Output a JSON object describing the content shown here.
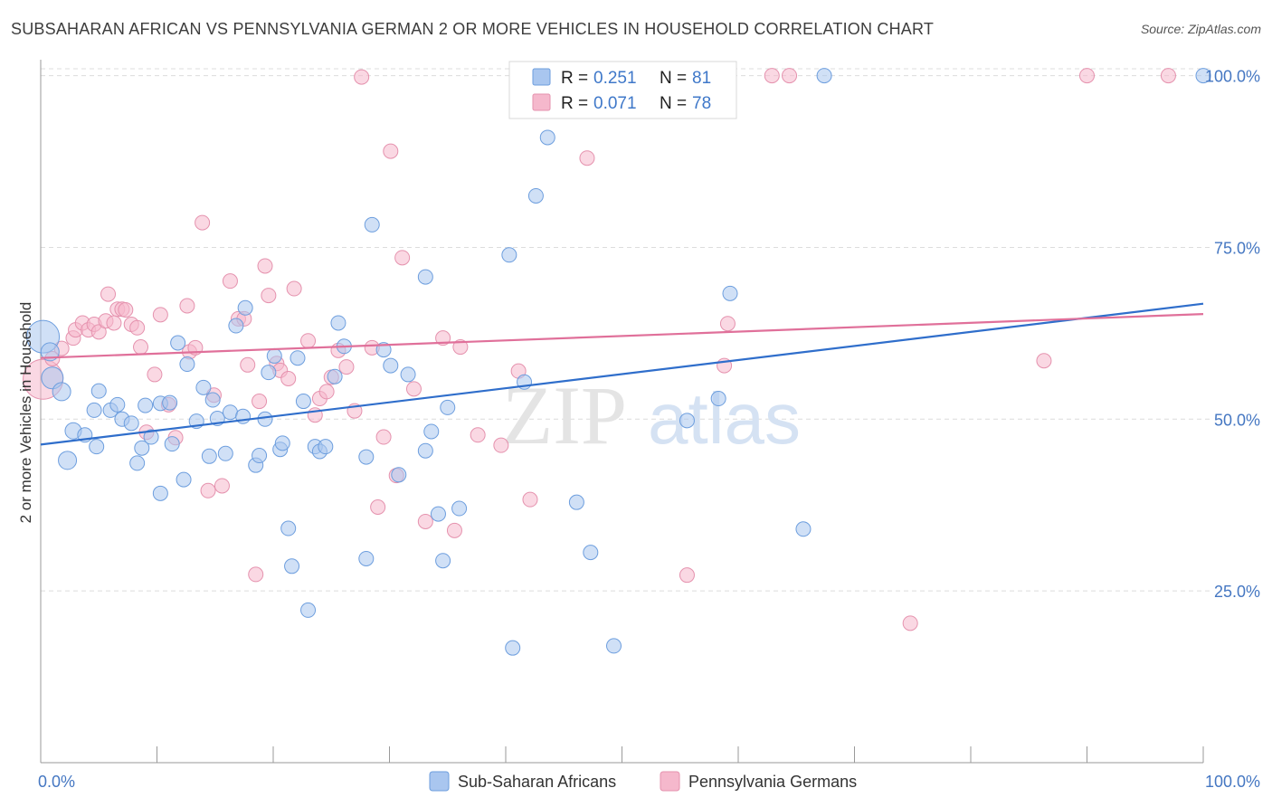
{
  "title": "SUBSAHARAN AFRICAN VS PENNSYLVANIA GERMAN 2 OR MORE VEHICLES IN HOUSEHOLD CORRELATION CHART",
  "source": "Source: ZipAtlas.com",
  "watermark": {
    "zip": "ZIP",
    "atlas": "atlas"
  },
  "colors": {
    "blue_fill": "#a9c6ef",
    "blue_stroke": "#6d9ede",
    "blue_line": "#2f6ecb",
    "pink_fill": "#f5b8cc",
    "pink_stroke": "#e592ae",
    "pink_line": "#e0709a",
    "value_text": "#3f78c9",
    "axis_text": "#4577c2",
    "grid": "#dcdcdc"
  },
  "legend_top": {
    "blue": {
      "r_label": "R =",
      "r_value": "0.251",
      "n_label": "N =",
      "n_value": "81"
    },
    "pink": {
      "r_label": "R =",
      "r_value": "0.071",
      "n_label": "N =",
      "n_value": "78"
    }
  },
  "chart_data": {
    "type": "scatter",
    "title": "SUBSAHARAN AFRICAN VS PENNSYLVANIA GERMAN 2 OR MORE VEHICLES IN HOUSEHOLD CORRELATION CHART",
    "xlabel": "",
    "ylabel": "2 or more Vehicles in Household",
    "xlim": [
      0,
      100
    ],
    "ylim": [
      0,
      101
    ],
    "x_tick_labels": [
      "0.0%",
      "100.0%"
    ],
    "y_ticks": [
      25,
      50,
      75,
      100
    ],
    "y_tick_labels": [
      "25.0%",
      "50.0%",
      "75.0%",
      "100.0%"
    ],
    "grid": true,
    "legend_position": "bottom-center",
    "series": [
      {
        "name": "Sub-Saharan Africans",
        "color": "#a9c6ef",
        "trend": {
          "x": [
            0,
            100
          ],
          "y": [
            46.3,
            66.8
          ]
        },
        "points": [
          [
            0.2,
            62.0,
            18
          ],
          [
            0.8,
            59.8,
            10
          ],
          [
            1.0,
            56.0,
            12
          ],
          [
            1.8,
            54.0,
            10
          ],
          [
            2.3,
            44.0,
            10
          ],
          [
            2.8,
            48.3,
            9
          ],
          [
            3.8,
            47.7,
            8
          ],
          [
            4.6,
            51.3,
            8
          ],
          [
            4.8,
            46.0,
            8
          ],
          [
            5.0,
            54.1,
            8
          ],
          [
            6.0,
            51.3,
            8
          ],
          [
            6.6,
            52.1,
            8
          ],
          [
            7.0,
            50.0,
            8
          ],
          [
            7.8,
            49.4,
            8
          ],
          [
            8.3,
            43.6,
            8
          ],
          [
            8.7,
            45.8,
            8
          ],
          [
            9.0,
            52.0,
            8
          ],
          [
            9.5,
            47.4,
            8
          ],
          [
            10.3,
            52.3,
            8
          ],
          [
            10.3,
            39.2,
            8
          ],
          [
            11.1,
            52.4,
            8
          ],
          [
            11.3,
            46.4,
            8
          ],
          [
            11.8,
            61.1,
            8
          ],
          [
            12.3,
            41.2,
            8
          ],
          [
            12.6,
            58.0,
            8
          ],
          [
            13.4,
            49.7,
            8
          ],
          [
            14.0,
            54.6,
            8
          ],
          [
            14.5,
            44.6,
            8
          ],
          [
            14.8,
            52.8,
            8
          ],
          [
            15.2,
            50.1,
            8
          ],
          [
            15.9,
            45.0,
            8
          ],
          [
            16.3,
            51.0,
            8
          ],
          [
            16.8,
            63.6,
            8
          ],
          [
            17.4,
            50.4,
            8
          ],
          [
            17.6,
            66.2,
            8
          ],
          [
            18.5,
            43.3,
            8
          ],
          [
            18.8,
            44.7,
            8
          ],
          [
            19.3,
            50.0,
            8
          ],
          [
            19.6,
            56.8,
            8
          ],
          [
            20.1,
            59.2,
            8
          ],
          [
            20.6,
            45.6,
            8
          ],
          [
            20.8,
            46.5,
            8
          ],
          [
            21.3,
            34.1,
            8
          ],
          [
            21.6,
            28.6,
            8
          ],
          [
            22.1,
            58.9,
            8
          ],
          [
            22.6,
            52.6,
            8
          ],
          [
            23.0,
            22.2,
            8
          ],
          [
            23.6,
            46.0,
            8
          ],
          [
            24.0,
            45.3,
            8
          ],
          [
            24.5,
            46.0,
            8
          ],
          [
            25.3,
            56.2,
            8
          ],
          [
            25.6,
            64.0,
            8
          ],
          [
            26.1,
            60.6,
            8
          ],
          [
            28.0,
            44.5,
            8
          ],
          [
            28.0,
            29.7,
            8
          ],
          [
            28.5,
            78.3,
            8
          ],
          [
            29.5,
            60.1,
            8
          ],
          [
            30.1,
            57.8,
            8
          ],
          [
            30.8,
            41.9,
            8
          ],
          [
            31.6,
            56.5,
            8
          ],
          [
            33.1,
            70.7,
            8
          ],
          [
            33.1,
            45.4,
            8
          ],
          [
            33.6,
            48.2,
            8
          ],
          [
            34.2,
            36.2,
            8
          ],
          [
            34.6,
            29.4,
            8
          ],
          [
            35.0,
            51.7,
            8
          ],
          [
            36.0,
            37.0,
            8
          ],
          [
            40.3,
            73.9,
            8
          ],
          [
            40.6,
            16.7,
            8
          ],
          [
            41.6,
            55.4,
            8
          ],
          [
            42.6,
            82.5,
            8
          ],
          [
            43.6,
            91.0,
            8
          ],
          [
            46.1,
            37.9,
            8
          ],
          [
            47.3,
            30.6,
            8
          ],
          [
            49.3,
            17.0,
            8
          ],
          [
            55.6,
            49.8,
            8
          ],
          [
            58.3,
            53.0,
            8
          ],
          [
            59.3,
            68.3,
            8
          ],
          [
            65.6,
            34.0,
            8
          ],
          [
            67.4,
            100.0,
            8
          ],
          [
            100.0,
            100.0,
            8
          ]
        ]
      },
      {
        "name": "Pennsylvania Germans",
        "color": "#f5b8cc",
        "trend": {
          "x": [
            0,
            100
          ],
          "y": [
            58.9,
            65.3
          ]
        },
        "points": [
          [
            0.2,
            55.8,
            22
          ],
          [
            1.0,
            58.8,
            8
          ],
          [
            1.8,
            60.3,
            8
          ],
          [
            2.8,
            61.8,
            8
          ],
          [
            3.0,
            63.0,
            8
          ],
          [
            3.6,
            64.0,
            8
          ],
          [
            4.1,
            63.0,
            8
          ],
          [
            4.6,
            63.8,
            8
          ],
          [
            5.0,
            62.7,
            8
          ],
          [
            5.6,
            64.3,
            8
          ],
          [
            5.8,
            68.2,
            8
          ],
          [
            6.3,
            64.0,
            8
          ],
          [
            6.6,
            66.0,
            8
          ],
          [
            7.0,
            66.0,
            8
          ],
          [
            7.3,
            65.9,
            8
          ],
          [
            7.8,
            63.8,
            8
          ],
          [
            8.3,
            63.3,
            8
          ],
          [
            8.6,
            60.5,
            8
          ],
          [
            9.1,
            48.1,
            8
          ],
          [
            9.8,
            56.5,
            8
          ],
          [
            10.3,
            65.2,
            8
          ],
          [
            11.0,
            52.1,
            8
          ],
          [
            11.6,
            47.3,
            8
          ],
          [
            12.6,
            66.5,
            8
          ],
          [
            12.8,
            59.8,
            8
          ],
          [
            13.3,
            60.4,
            8
          ],
          [
            13.9,
            78.6,
            8
          ],
          [
            14.4,
            39.6,
            8
          ],
          [
            14.9,
            53.5,
            8
          ],
          [
            15.6,
            40.3,
            8
          ],
          [
            16.3,
            70.1,
            8
          ],
          [
            17.0,
            64.6,
            8
          ],
          [
            17.5,
            64.6,
            8
          ],
          [
            17.8,
            57.9,
            8
          ],
          [
            18.5,
            27.4,
            8
          ],
          [
            18.8,
            52.6,
            8
          ],
          [
            19.3,
            72.3,
            8
          ],
          [
            19.6,
            68.0,
            8
          ],
          [
            20.3,
            58.1,
            8
          ],
          [
            20.6,
            57.1,
            8
          ],
          [
            21.3,
            55.9,
            8
          ],
          [
            21.8,
            69.0,
            8
          ],
          [
            23.0,
            61.4,
            8
          ],
          [
            23.6,
            50.6,
            8
          ],
          [
            24.0,
            53.0,
            8
          ],
          [
            24.6,
            54.0,
            8
          ],
          [
            25.0,
            56.1,
            8
          ],
          [
            25.6,
            60.0,
            8
          ],
          [
            26.3,
            57.6,
            8
          ],
          [
            27.0,
            51.2,
            8
          ],
          [
            27.6,
            99.8,
            8
          ],
          [
            28.5,
            60.4,
            8
          ],
          [
            29.0,
            37.2,
            8
          ],
          [
            29.5,
            47.4,
            8
          ],
          [
            30.1,
            89.0,
            8
          ],
          [
            30.6,
            41.8,
            8
          ],
          [
            31.1,
            73.5,
            8
          ],
          [
            32.1,
            54.4,
            8
          ],
          [
            33.1,
            35.1,
            8
          ],
          [
            34.6,
            61.8,
            8
          ],
          [
            35.6,
            33.8,
            8
          ],
          [
            36.1,
            60.5,
            8
          ],
          [
            37.6,
            47.7,
            8
          ],
          [
            39.6,
            46.2,
            8
          ],
          [
            41.1,
            57.0,
            8
          ],
          [
            42.1,
            38.3,
            8
          ],
          [
            46.0,
            100.0,
            8
          ],
          [
            47.0,
            88.0,
            8
          ],
          [
            55.0,
            100.0,
            8
          ],
          [
            55.6,
            27.3,
            8
          ],
          [
            58.8,
            57.8,
            8
          ],
          [
            59.1,
            63.9,
            8
          ],
          [
            62.9,
            100.0,
            8
          ],
          [
            64.4,
            100.0,
            8
          ],
          [
            74.8,
            20.3,
            8
          ],
          [
            86.3,
            58.5,
            8
          ],
          [
            90.0,
            100.0,
            8
          ],
          [
            97.0,
            100.0,
            8
          ]
        ]
      }
    ]
  }
}
